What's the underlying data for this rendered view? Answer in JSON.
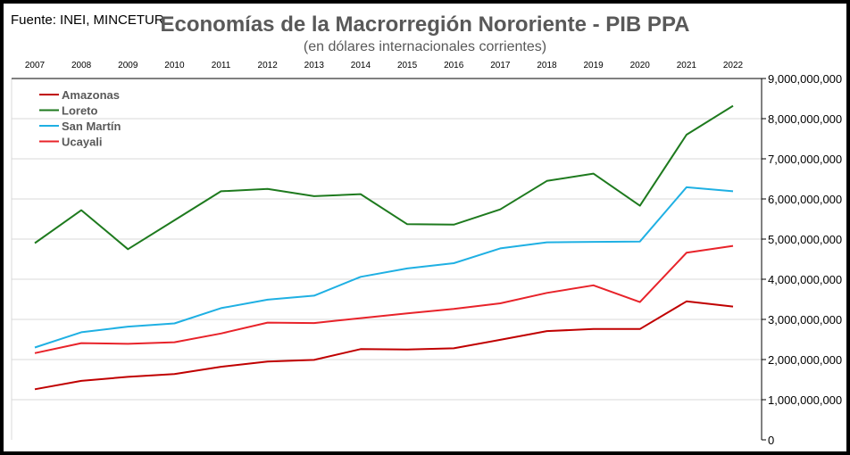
{
  "source": "Fuente: INEI, MINCETUR",
  "chart_data": {
    "type": "line",
    "title": "Economías de la Macrorregión Nororiente - PIB PPA",
    "subtitle": "(en dólares internacionales corrientes)",
    "x": [
      "2007",
      "2008",
      "2009",
      "2010",
      "2011",
      "2012",
      "2013",
      "2014",
      "2015",
      "2016",
      "2017",
      "2018",
      "2019",
      "2020",
      "2021",
      "2022"
    ],
    "ylim": [
      0,
      9000000000
    ],
    "yticks": [
      0,
      1000000000,
      2000000000,
      3000000000,
      4000000000,
      5000000000,
      6000000000,
      7000000000,
      8000000000,
      9000000000
    ],
    "ytick_labels": [
      "0",
      "1,000,000,000",
      "2,000,000,000",
      "3,000,000,000",
      "4,000,000,000",
      "5,000,000,000",
      "6,000,000,000",
      "7,000,000,000",
      "8,000,000,000",
      "9,000,000,000"
    ],
    "x_axis_position": "top",
    "y_axis_position": "right",
    "grid": true,
    "legend_position": "top-left",
    "series": [
      {
        "name": "Amazonas",
        "color": "#c00000",
        "values": [
          1260000000,
          1470000000,
          1570000000,
          1640000000,
          1820000000,
          1950000000,
          1990000000,
          2260000000,
          2250000000,
          2280000000,
          2490000000,
          2710000000,
          2760000000,
          2760000000,
          3450000000,
          3320000000
        ]
      },
      {
        "name": "Loreto",
        "color": "#1e7a1e",
        "values": [
          4900000000,
          5720000000,
          4750000000,
          5470000000,
          6190000000,
          6250000000,
          6070000000,
          6120000000,
          5370000000,
          5360000000,
          5740000000,
          6450000000,
          6630000000,
          5830000000,
          7600000000,
          8320000000
        ]
      },
      {
        "name": "San Martín",
        "color": "#1fb0e3",
        "values": [
          2300000000,
          2680000000,
          2820000000,
          2900000000,
          3280000000,
          3490000000,
          3590000000,
          4060000000,
          4270000000,
          4400000000,
          4770000000,
          4920000000,
          4930000000,
          4940000000,
          6290000000,
          6190000000
        ]
      },
      {
        "name": "Ucayali",
        "color": "#e8232a",
        "values": [
          2160000000,
          2410000000,
          2390000000,
          2430000000,
          2650000000,
          2920000000,
          2910000000,
          3030000000,
          3150000000,
          3260000000,
          3400000000,
          3660000000,
          3850000000,
          3430000000,
          4660000000,
          4830000000
        ]
      }
    ]
  }
}
